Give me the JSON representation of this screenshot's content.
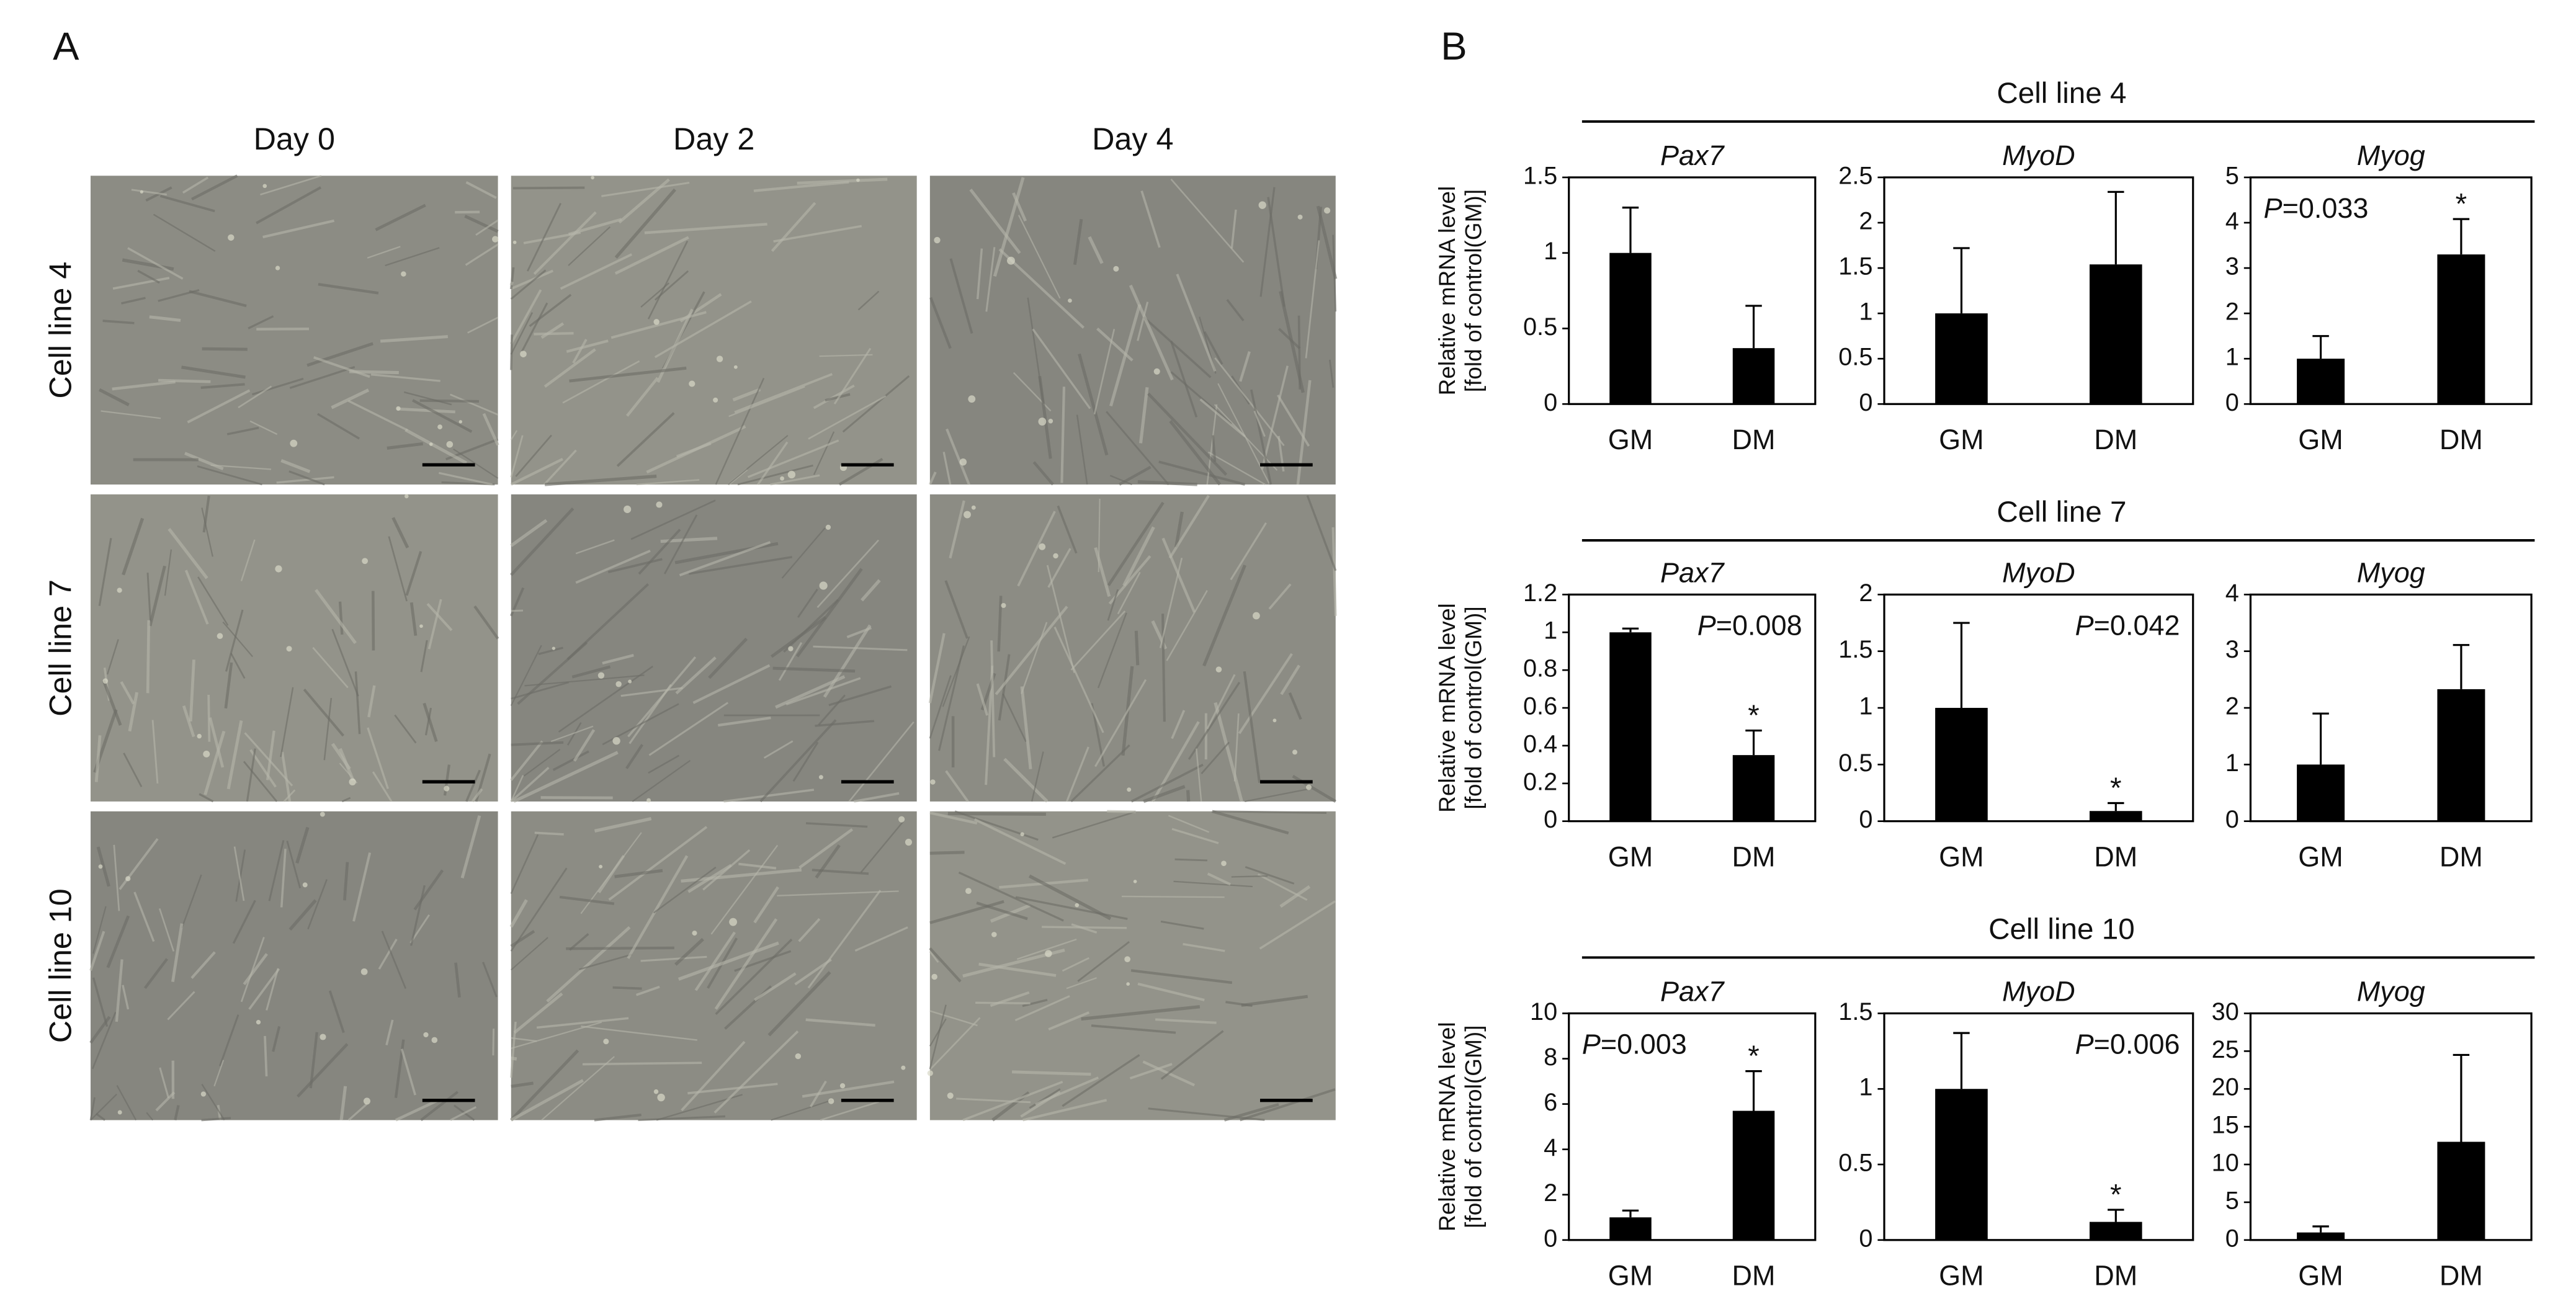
{
  "panel_a": {
    "label": "A",
    "columns": [
      "Day 0",
      "Day 2",
      "Day 4"
    ],
    "rows": [
      "Cell line 4",
      "Cell line 7",
      "Cell line 10"
    ]
  },
  "panel_b": {
    "label": "B",
    "groups": [
      "Cell line 4",
      "Cell line 7",
      "Cell line 10"
    ]
  },
  "chart_data": [
    {
      "type": "bar",
      "title": "Pax7",
      "ylabel": [
        "Relative mRNA level",
        "[fold of control(GM)]"
      ],
      "categories": [
        "GM",
        "DM"
      ],
      "values": [
        1,
        0.37
      ],
      "errors": [
        0.3,
        0.28
      ],
      "color": "#000000",
      "ylim": [
        0,
        1.5
      ],
      "yticks": [
        0,
        0.5,
        1,
        1.5
      ]
    },
    {
      "type": "bar",
      "title": "MyoD",
      "categories": [
        "GM",
        "DM"
      ],
      "values": [
        1,
        1.54
      ],
      "errors": [
        0.72,
        0.8
      ],
      "color": "#000000",
      "ylim": [
        0,
        2.5
      ],
      "yticks": [
        0,
        0.5,
        1,
        1.5,
        2,
        2.5
      ]
    },
    {
      "type": "bar",
      "title": "Myog",
      "categories": [
        "GM",
        "DM"
      ],
      "values": [
        1,
        3.3
      ],
      "errors": [
        0.5,
        0.78
      ],
      "color": "#000000",
      "significance": [
        null,
        "*"
      ],
      "annotation": {
        "italic": "P",
        "text": "=0.033"
      },
      "annotation_corner": "top-left",
      "ylim": [
        0,
        5
      ],
      "yticks": [
        0,
        1,
        2,
        3,
        4,
        5
      ]
    },
    {
      "type": "bar",
      "title": "Pax7",
      "ylabel": [
        "Relative mRNA level",
        "[fold of control(GM)]"
      ],
      "categories": [
        "GM",
        "DM"
      ],
      "values": [
        1,
        0.35
      ],
      "errors": [
        0.02,
        0.13
      ],
      "color": "#000000",
      "significance": [
        null,
        "*"
      ],
      "annotation": {
        "italic": "P",
        "text": "=0.008"
      },
      "annotation_corner": "top-right",
      "ylim": [
        0,
        1.2
      ],
      "yticks": [
        0,
        0.2,
        0.4,
        0.6,
        0.8,
        1,
        1.2
      ]
    },
    {
      "type": "bar",
      "title": "MyoD",
      "categories": [
        "GM",
        "DM"
      ],
      "values": [
        1,
        0.09
      ],
      "errors": [
        0.75,
        0.07
      ],
      "color": "#000000",
      "significance": [
        null,
        "*"
      ],
      "annotation": {
        "italic": "P",
        "text": "=0.042"
      },
      "annotation_corner": "top-right",
      "ylim": [
        0,
        2
      ],
      "yticks": [
        0,
        0.5,
        1,
        1.5,
        2
      ]
    },
    {
      "type": "bar",
      "title": "Myog",
      "categories": [
        "GM",
        "DM"
      ],
      "values": [
        1,
        2.33
      ],
      "errors": [
        0.9,
        0.78
      ],
      "color": "#000000",
      "ylim": [
        0,
        4
      ],
      "yticks": [
        0,
        1,
        2,
        3,
        4
      ]
    },
    {
      "type": "bar",
      "title": "Pax7",
      "ylabel": [
        "Relative mRNA level",
        "[fold of control(GM)]"
      ],
      "categories": [
        "GM",
        "DM"
      ],
      "values": [
        1,
        5.7
      ],
      "errors": [
        0.3,
        1.75
      ],
      "color": "#000000",
      "significance": [
        null,
        "*"
      ],
      "annotation": {
        "italic": "P",
        "text": "=0.003"
      },
      "annotation_corner": "top-left",
      "ylim": [
        0,
        10
      ],
      "yticks": [
        0,
        2,
        4,
        6,
        8,
        10
      ]
    },
    {
      "type": "bar",
      "title": "MyoD",
      "categories": [
        "GM",
        "DM"
      ],
      "values": [
        1,
        0.12
      ],
      "errors": [
        0.37,
        0.08
      ],
      "color": "#000000",
      "significance": [
        null,
        "*"
      ],
      "annotation": {
        "italic": "P",
        "text": "=0.006"
      },
      "annotation_corner": "top-right",
      "ylim": [
        0,
        1.5
      ],
      "yticks": [
        0,
        0.5,
        1,
        1.5
      ]
    },
    {
      "type": "bar",
      "title": "Myog",
      "categories": [
        "GM",
        "DM"
      ],
      "values": [
        1,
        13
      ],
      "errors": [
        0.8,
        11.5
      ],
      "color": "#000000",
      "ylim": [
        0,
        30
      ],
      "yticks": [
        0,
        5,
        10,
        15,
        20,
        25,
        30
      ]
    }
  ]
}
